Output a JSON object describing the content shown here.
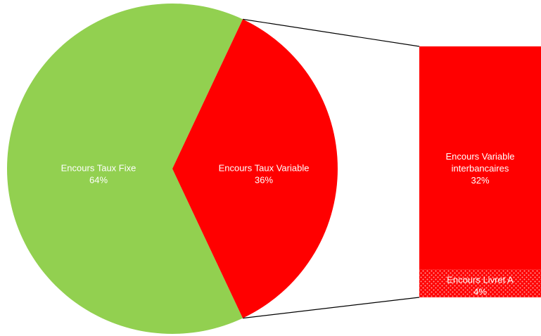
{
  "chart_data": {
    "type": "pie",
    "subtype": "pie-of-bar",
    "title": "",
    "slices": [
      {
        "label": "Encours Taux Fixe",
        "value": 64,
        "display": "64%",
        "color": "#92d050"
      },
      {
        "label": "Encours Taux Variable",
        "value": 36,
        "display": "36%",
        "color": "#ff0000"
      }
    ],
    "breakdown": {
      "of": "Encours Taux Variable",
      "items": [
        {
          "label_lines": [
            "Encours Variable",
            "interbancaires"
          ],
          "value": 32,
          "display": "32%",
          "color": "#ff0000",
          "pattern": "solid"
        },
        {
          "label_lines": [
            "Encours Livret A"
          ],
          "value": 4,
          "display": "4%",
          "color": "#ff0000",
          "pattern": "dotted"
        }
      ]
    },
    "legend": "none"
  }
}
